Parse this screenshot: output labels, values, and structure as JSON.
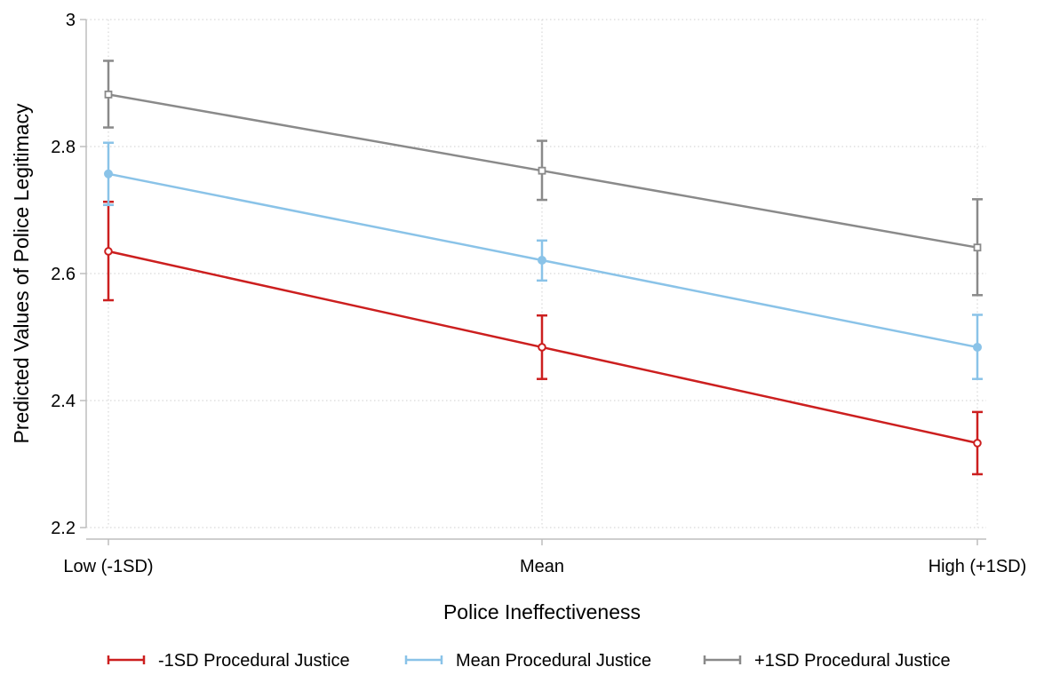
{
  "chart_data": {
    "type": "line",
    "title": "",
    "xlabel": "Police Ineffectiveness",
    "ylabel": "Predicted Values of Police Legitimacy",
    "categories": [
      "Low (-1SD)",
      "Mean",
      "High (+1SD)"
    ],
    "ylim": [
      2.2,
      3.0
    ],
    "yticks": [
      2.2,
      2.4,
      2.6,
      2.8,
      3.0
    ],
    "ytick_labels": [
      "2.2",
      "2.4",
      "2.6",
      "2.8",
      "3"
    ],
    "grid": true,
    "legend_position": "bottom",
    "series": [
      {
        "name": "-1SD Procedural Justice",
        "color": "#cc1f1f",
        "marker": "circle",
        "values": [
          2.635,
          2.484,
          2.333
        ],
        "ci_low": [
          2.558,
          2.434,
          2.284
        ],
        "ci_high": [
          2.713,
          2.534,
          2.382
        ]
      },
      {
        "name": "Mean Procedural Justice",
        "color": "#8ac3e8",
        "marker": "filled-circle",
        "values": [
          2.757,
          2.621,
          2.484
        ],
        "ci_low": [
          2.708,
          2.589,
          2.434
        ],
        "ci_high": [
          2.806,
          2.652,
          2.535
        ]
      },
      {
        "name": "+1SD Procedural Justice",
        "color": "#8a8a8a",
        "marker": "square",
        "values": [
          2.882,
          2.762,
          2.641
        ],
        "ci_low": [
          2.83,
          2.716,
          2.566
        ],
        "ci_high": [
          2.935,
          2.809,
          2.717
        ]
      }
    ]
  }
}
